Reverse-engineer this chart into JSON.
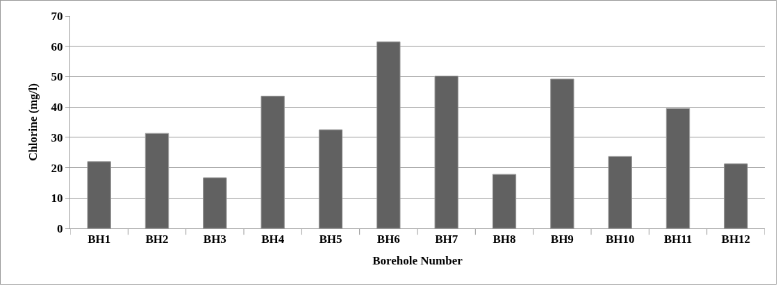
{
  "chart_data": {
    "type": "bar",
    "xlabel": "Borehole Number",
    "ylabel": "Chlorine (mg/l)",
    "categories": [
      "BH1",
      "BH2",
      "BH3",
      "BH4",
      "BH5",
      "BH6",
      "BH7",
      "BH8",
      "BH9",
      "BH10",
      "BH11",
      "BH12"
    ],
    "values": [
      22.0,
      31.3,
      16.7,
      43.6,
      32.5,
      61.5,
      50.2,
      17.8,
      49.2,
      23.7,
      39.5,
      21.3
    ],
    "color": "#616161",
    "ylim": [
      0,
      70
    ],
    "yticks": [
      0,
      10,
      20,
      30,
      40,
      50,
      60,
      70
    ],
    "grid": "y"
  }
}
